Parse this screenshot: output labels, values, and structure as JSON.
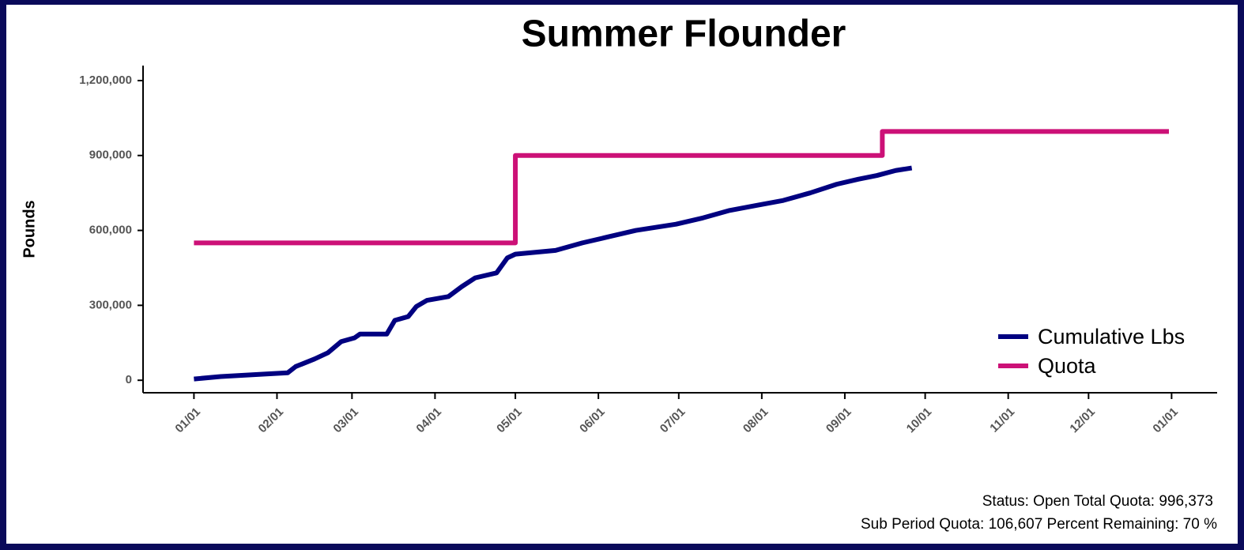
{
  "chart_data": {
    "type": "line",
    "title": "Summer Flounder",
    "y_label": "Pounds",
    "xlim": [
      -19,
      382
    ],
    "xticks": [
      {
        "value": 0,
        "label": "01/01"
      },
      {
        "value": 31,
        "label": "02/01"
      },
      {
        "value": 59,
        "label": "03/01"
      },
      {
        "value": 90,
        "label": "04/01"
      },
      {
        "value": 120,
        "label": "05/01"
      },
      {
        "value": 151,
        "label": "06/01"
      },
      {
        "value": 181,
        "label": "07/01"
      },
      {
        "value": 212,
        "label": "08/01"
      },
      {
        "value": 243,
        "label": "09/01"
      },
      {
        "value": 273,
        "label": "10/01"
      },
      {
        "value": 304,
        "label": "11/01"
      },
      {
        "value": 334,
        "label": "12/01"
      },
      {
        "value": 365,
        "label": "01/01"
      }
    ],
    "ylim": [
      -50000,
      1260000
    ],
    "yticks": [
      0,
      {
        "value": 300000,
        "label": "300,000"
      },
      {
        "value": 600000,
        "label": "600,000"
      },
      {
        "value": 900000,
        "label": "900,000"
      },
      {
        "value": 1200000,
        "label": "1,200,000"
      }
    ],
    "legend": "bottom-right",
    "series": [
      {
        "name": "Cumulative Lbs",
        "color": "#000080",
        "x": [
          0,
          10,
          27,
          35,
          38,
          45,
          50,
          55,
          60,
          62,
          72,
          75,
          80,
          83,
          87,
          95,
          100,
          105,
          113,
          117,
          120,
          135,
          145,
          155,
          165,
          180,
          190,
          200,
          210,
          220,
          230,
          240,
          248,
          255,
          262,
          268
        ],
        "values": [
          5000,
          15000,
          25000,
          30000,
          55000,
          85000,
          110000,
          155000,
          170000,
          185000,
          185000,
          240000,
          255000,
          295000,
          320000,
          335000,
          375000,
          410000,
          430000,
          490000,
          505000,
          520000,
          550000,
          575000,
          600000,
          625000,
          650000,
          680000,
          700000,
          720000,
          750000,
          785000,
          805000,
          820000,
          840000,
          850000
        ]
      },
      {
        "name": "Quota",
        "color": "#cc1177",
        "x": [
          0,
          120,
          120,
          257,
          257,
          364
        ],
        "values": [
          550000,
          550000,
          900000,
          900000,
          996000,
          996000
        ]
      }
    ],
    "annotations": [
      "Status: Open Total Quota: 996,373",
      "Sub Period Quota: 106,607 Percent Remaining: 70 %"
    ]
  }
}
